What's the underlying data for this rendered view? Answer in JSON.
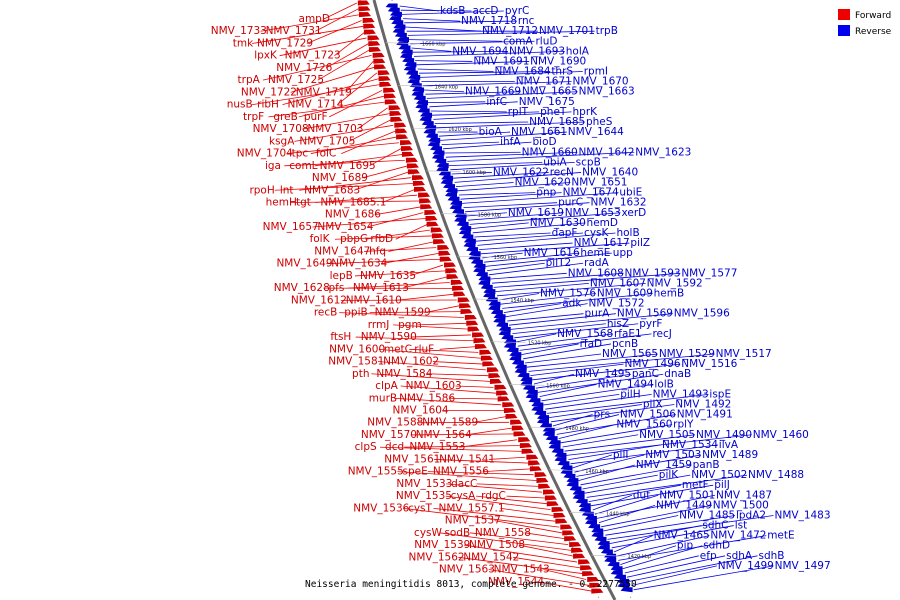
{
  "caption": "Neisseria meningitidis 8013, complete genome. - 0..2277550",
  "legend": {
    "forward": {
      "label": "Forward",
      "color": "#ee0000"
    },
    "reverse": {
      "label": "Reverse",
      "color": "#0000ee"
    }
  },
  "ticks": [
    "1660 kbp",
    "1640 kbp",
    "1620 kbp",
    "1600 kbp",
    "1580 kbp",
    "1560 kbp",
    "1540 kbp",
    "1520 kbp",
    "1500 kbp",
    "1480 kbp",
    "1460 kbp",
    "1440 kbp",
    "1420 kbp"
  ],
  "forward_genes": [
    "ampD",
    "NMV_1733",
    "NMV_1731",
    "tmk",
    "NMV_1729",
    "lpxK",
    "NMV_1723",
    "NMV_1726",
    "trpA",
    "NMV_1725",
    "NMV_1722",
    "NMV_1719",
    "nusB",
    "ribH",
    "NMV_1714",
    "trpF",
    "greB",
    "purF",
    "NMV_1708",
    "NMV_1703",
    "ksgA",
    "NMV_1705",
    "NMV_1704",
    "tpc",
    "folC",
    "iga",
    "comL",
    "NMV_1695",
    "NMV_1689",
    "rpoH",
    "lnt",
    "NMV_1683",
    "hemH",
    "tgt",
    "NMV_1685.1",
    "NMV_1686",
    "NMV_1657",
    "NMV_1654",
    "folK",
    "pbpG",
    "rfbD",
    "NMV_1647",
    "hfq",
    "NMV_1649",
    "NMV_1634",
    "lepB",
    "NMV_1635",
    "NMV_1628",
    "pfs",
    "NMV_1613",
    "NMV_1612",
    "NMV_1610",
    "recB",
    "ppiB",
    "NMV_1599",
    "rrmJ",
    "pgm",
    "ftsH",
    "NMV_1590",
    "NMV_1600",
    "metC",
    "rluF",
    "NMV_1581",
    "NMV_1602",
    "pth",
    "NMV_1584",
    "clpA",
    "NMV_1603",
    "murB",
    "NMV_1586",
    "NMV_1604",
    "NMV_1588",
    "NMV_1589",
    "NMV_1570",
    "NMV_1564",
    "clpS",
    "dcd",
    "NMV_1553",
    "NMV_1561",
    "NMV_1541",
    "NMV_1555",
    "speE",
    "NMV_1556",
    "NMV_1533",
    "dacC",
    "NMV_1535",
    "cysA",
    "rdgC",
    "NMV_1536",
    "cysT",
    "NMV_1557.1",
    "NMV_1537",
    "cysW",
    "sodB",
    "NMV_1558",
    "NMV_1539",
    "NMV_1508",
    "NMV_1562",
    "NMV_1542",
    "NMV_1563",
    "NMV_1543",
    "NMV_1544"
  ],
  "reverse_genes": [
    "kdsB",
    "accD",
    "pyrC",
    "NMV_1718",
    "rnc",
    "NMV_1712",
    "NMV_1701",
    "trpB",
    "comA",
    "rluD",
    "NMV_1694",
    "NMV_1693",
    "holA",
    "NMV_1691",
    "NMV_1690",
    "NMV_1684",
    "thrS",
    "rpmI",
    "NMV_1671",
    "NMV_1670",
    "NMV_1669",
    "NMV_1665",
    "NMV_1663",
    "infC",
    "NMV_1675",
    "rplT",
    "pheT",
    "hprK",
    "NMV_1685",
    "pheS",
    "bioA",
    "NMV_1661",
    "NMV_1644",
    "ihfA",
    "bioD",
    "NMV_1660",
    "NMV_1642",
    "NMV_1623",
    "ubiA",
    "scpB",
    "NMV_1622",
    "recN",
    "NMV_1640",
    "NMV_1620",
    "NMV_1651",
    "pnp",
    "NMV_1674",
    "ubiE",
    "purC",
    "NMV_1632",
    "NMV_1619",
    "NMV_1653",
    "xerD",
    "NMV_1630",
    "hemD",
    "dapF",
    "cysK",
    "holB",
    "NMV_1617",
    "pilZ",
    "NMV_1616",
    "hemE",
    "upp",
    "pilT2",
    "radA",
    "NMV_1608",
    "NMV_1593",
    "NMV_1577",
    "NMV_1607",
    "NMV_1592",
    "NMV_1576",
    "NMV_1609",
    "hemB",
    "adk",
    "NMV_1572",
    "purA",
    "NMV_1569",
    "NMV_1596",
    "hisZ",
    "pyrF",
    "NMV_1568",
    "rfaE1",
    "recJ",
    "rfaD",
    "pcnB",
    "NMV_1565",
    "NMV_1529",
    "NMV_1517",
    "NMV_1496",
    "NMV_1516",
    "NMV_1495",
    "panC",
    "dnaB",
    "NMV_1494",
    "lolB",
    "pilH",
    "NMV_1493",
    "ispE",
    "pilX",
    "NMV_1492",
    "prs",
    "NMV_1506",
    "NMV_1491",
    "NMV_1560",
    "rplY",
    "NMV_1505",
    "NMV_1490",
    "NMV_1460",
    "NMV_1534",
    "ilvA",
    "pilI",
    "NMV_1503",
    "NMV_1489",
    "NMV_1459",
    "panB",
    "pilK",
    "NMV_1502",
    "NMV_1488",
    "metF",
    "pilJ",
    "dut",
    "NMV_1501",
    "NMV_1487",
    "NMV_1449",
    "NMV_1500",
    "NMV_1485",
    "lpdA2",
    "NMV_1483",
    "sdhC",
    "lst",
    "NMV_1465",
    "NMV_1472",
    "metE",
    "pip",
    "sdhD",
    "efp",
    "sdhA",
    "sdhB",
    "NMV_1499",
    "NMV_1497"
  ]
}
